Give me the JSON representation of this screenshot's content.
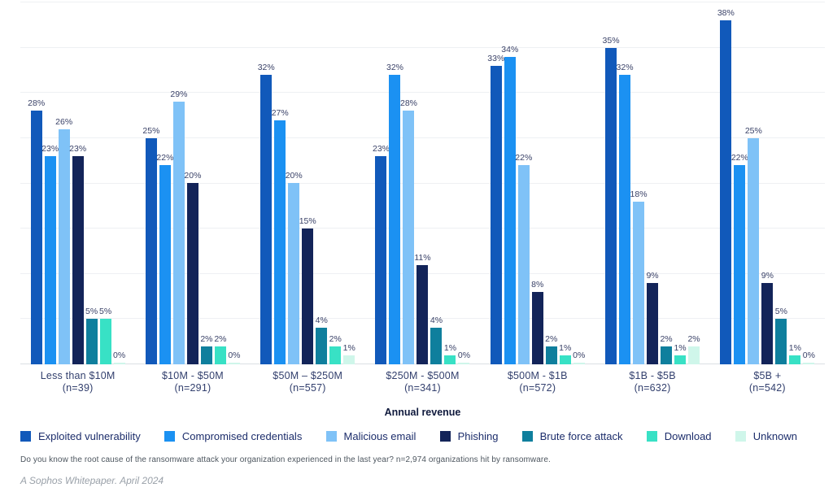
{
  "chart_data": {
    "type": "bar",
    "title": "",
    "xlabel": "Annual revenue",
    "ylabel": "",
    "ylim": [
      0,
      40
    ],
    "gridline_step": 5,
    "grid": true,
    "legend_position": "bottom",
    "categories": [
      {
        "label": "Less than $10M",
        "n": "(n=39)"
      },
      {
        "label": "$10M - $50M",
        "n": "(n=291)"
      },
      {
        "label": "$50M – $250M",
        "n": "(n=557)"
      },
      {
        "label": "$250M - $500M",
        "n": "(n=341)"
      },
      {
        "label": "$500M - $1B",
        "n": "(n=572)"
      },
      {
        "label": "$1B - $5B",
        "n": "(n=632)"
      },
      {
        "label": "$5B +",
        "n": "(n=542)"
      }
    ],
    "series": [
      {
        "name": "Exploited vulnerability",
        "color": "#1159ba",
        "values": [
          28,
          25,
          32,
          23,
          33,
          35,
          38
        ]
      },
      {
        "name": "Compromised credentials",
        "color": "#1b91f2",
        "values": [
          23,
          22,
          27,
          32,
          34,
          32,
          22
        ]
      },
      {
        "name": "Malicious email",
        "color": "#7fc2f7",
        "values": [
          26,
          29,
          20,
          28,
          22,
          18,
          25
        ]
      },
      {
        "name": "Phishing",
        "color": "#132459",
        "values": [
          23,
          20,
          15,
          11,
          8,
          9,
          9
        ]
      },
      {
        "name": "Brute force attack",
        "color": "#0f7f9d",
        "values": [
          5,
          2,
          4,
          4,
          2,
          2,
          5
        ]
      },
      {
        "name": "Download",
        "color": "#38e1c5",
        "values": [
          5,
          2,
          2,
          1,
          1,
          1,
          1
        ]
      },
      {
        "name": "Unknown",
        "color": "#cff6ea",
        "values": [
          0,
          0,
          1,
          0,
          0,
          2,
          0
        ]
      }
    ],
    "value_label_suffix": "%"
  },
  "axis": {
    "title": "Annual revenue"
  },
  "footnote": "Do you know the root cause of the ransomware attack your organization experienced in the last year? n=2,974 organizations hit by ransomware.",
  "attribution": "A Sophos Whitepaper. April 2024",
  "colors": {
    "gridline": "#eef0f3",
    "baseline": "#dbdfe4",
    "value_label": "#3a4268",
    "tick_label": "#33406e",
    "legend_label": "#1c2d6b",
    "footnote": "#4d565f",
    "attribution": "#9aa1a9"
  }
}
